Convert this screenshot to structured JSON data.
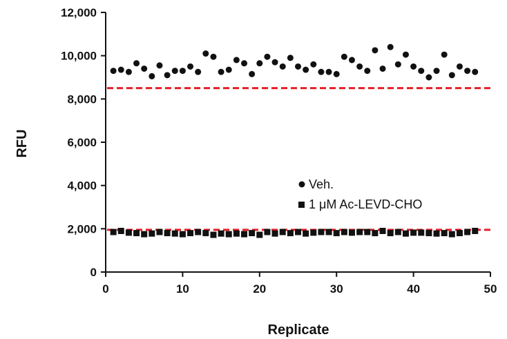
{
  "chart_data": {
    "type": "scatter",
    "title": "",
    "xlabel": "Replicate",
    "ylabel": "RFU",
    "xlim": [
      0,
      50
    ],
    "ylim": [
      0,
      12000
    ],
    "x_ticks": [
      0,
      10,
      20,
      30,
      40,
      50
    ],
    "y_ticks": [
      0,
      2000,
      4000,
      6000,
      8000,
      10000,
      12000
    ],
    "x_tick_labels": [
      "0",
      "10",
      "20",
      "30",
      "40",
      "50"
    ],
    "y_tick_labels": [
      "0",
      "2,000",
      "4,000",
      "6,000",
      "8,000",
      "10,000",
      "12,000"
    ],
    "grid": false,
    "legend_position": "center-right",
    "series": [
      {
        "name": "Veh.",
        "marker": "circle",
        "color": "#111111",
        "x": [
          1,
          2,
          3,
          4,
          5,
          6,
          7,
          8,
          9,
          10,
          11,
          12,
          13,
          14,
          15,
          16,
          17,
          18,
          19,
          20,
          21,
          22,
          23,
          24,
          25,
          26,
          27,
          28,
          29,
          30,
          31,
          32,
          33,
          34,
          35,
          36,
          37,
          38,
          39,
          40,
          41,
          42,
          43,
          44,
          45,
          46,
          47,
          48
        ],
        "y": [
          9300,
          9350,
          9250,
          9650,
          9400,
          9050,
          9550,
          9100,
          9300,
          9300,
          9500,
          9250,
          10100,
          9950,
          9250,
          9350,
          9800,
          9650,
          9150,
          9650,
          9950,
          9700,
          9500,
          9900,
          9500,
          9350,
          9600,
          9250,
          9250,
          9150,
          9950,
          9800,
          9500,
          9300,
          10250,
          9400,
          10400,
          9600,
          10050,
          9500,
          9300,
          9000,
          9300,
          10050,
          9100,
          9500,
          9300,
          9250
        ]
      },
      {
        "name": "1 μM Ac-LEVD-CHO",
        "marker": "square",
        "color": "#111111",
        "x": [
          1,
          2,
          3,
          4,
          5,
          6,
          7,
          8,
          9,
          10,
          11,
          12,
          13,
          14,
          15,
          16,
          17,
          18,
          19,
          20,
          21,
          22,
          23,
          24,
          25,
          26,
          27,
          28,
          29,
          30,
          31,
          32,
          33,
          34,
          35,
          36,
          37,
          38,
          39,
          40,
          41,
          42,
          43,
          44,
          45,
          46,
          47,
          48
        ],
        "y": [
          1850,
          1900,
          1820,
          1800,
          1750,
          1780,
          1850,
          1800,
          1780,
          1750,
          1800,
          1850,
          1800,
          1720,
          1780,
          1750,
          1780,
          1750,
          1800,
          1720,
          1850,
          1780,
          1850,
          1800,
          1850,
          1780,
          1820,
          1850,
          1850,
          1800,
          1850,
          1820,
          1850,
          1850,
          1800,
          1900,
          1800,
          1850,
          1780,
          1820,
          1820,
          1800,
          1780,
          1800,
          1750,
          1800,
          1850,
          1900
        ]
      }
    ],
    "reference_lines": [
      {
        "y": 8500,
        "color": "#e41e26",
        "style": "dashed"
      },
      {
        "y": 1950,
        "color": "#e41e26",
        "style": "dashed"
      }
    ]
  }
}
